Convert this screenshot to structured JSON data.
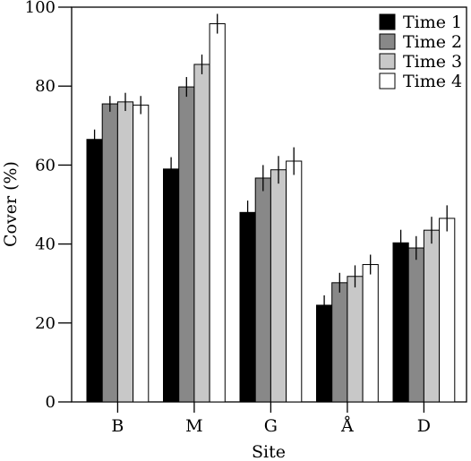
{
  "chart_data": {
    "type": "bar",
    "title": "",
    "xlabel": "Site",
    "ylabel": "Cover (%)",
    "ylim": [
      0,
      100
    ],
    "yticks": [
      "0",
      "20",
      "40",
      "60",
      "80",
      "100"
    ],
    "categories": [
      "B",
      "M",
      "G",
      "Å",
      "D"
    ],
    "series": [
      {
        "name": "Time 1",
        "color": "#000000",
        "values": [
          66.5,
          59,
          48,
          24.5,
          40.3
        ],
        "errors": [
          2.5,
          3,
          3,
          2.5,
          3.3
        ]
      },
      {
        "name": "Time 2",
        "color": "#888888",
        "values": [
          75.5,
          79.8,
          56.7,
          30.2,
          39
        ],
        "errors": [
          2,
          2.5,
          3.3,
          2.5,
          3
        ]
      },
      {
        "name": "Time 3",
        "color": "#c8c8c8",
        "values": [
          76,
          85.5,
          58.8,
          31.8,
          43.5
        ],
        "errors": [
          2.3,
          2.5,
          3.5,
          2.8,
          3.4
        ]
      },
      {
        "name": "Time 4",
        "color": "#ffffff",
        "values": [
          75.2,
          95.8,
          61,
          34.8,
          46.5
        ],
        "errors": [
          2.3,
          2.5,
          3.5,
          2.5,
          3.3
        ]
      }
    ],
    "legend_position": "top-right",
    "grid": false
  }
}
